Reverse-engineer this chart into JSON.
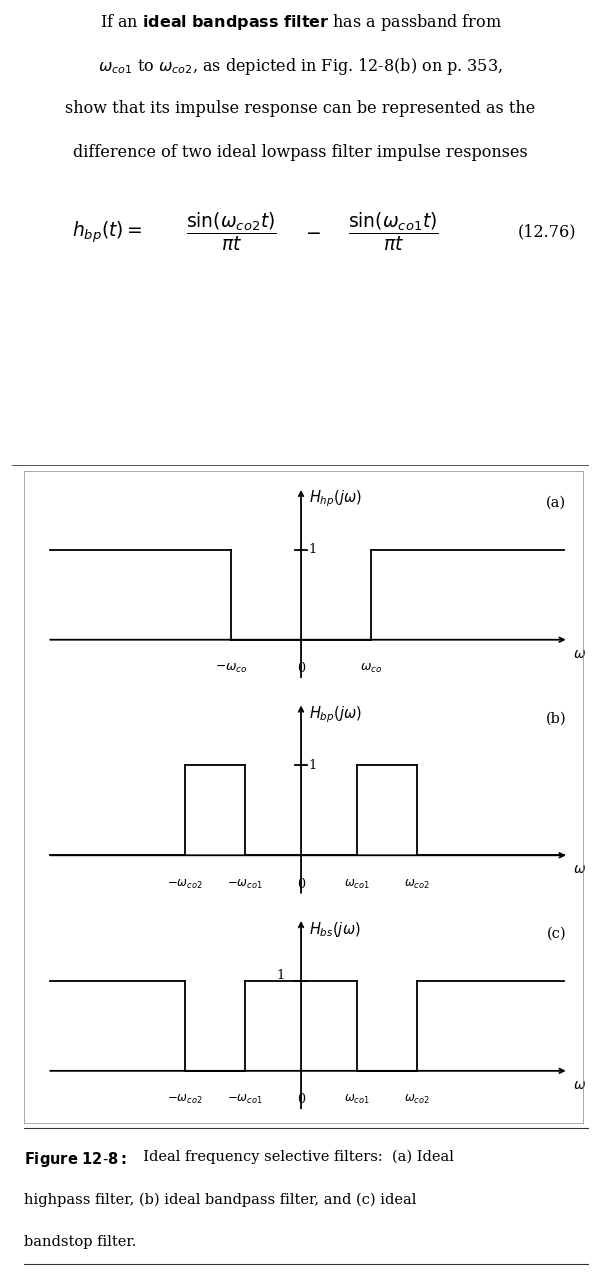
{
  "bg_color": "#ffffff",
  "text_color": "#000000",
  "lw": 1.3,
  "lc": "#000000",
  "wco": 1.5,
  "wco1": 1.2,
  "wco2": 2.5,
  "xlim": [
    -5.5,
    5.8
  ],
  "ylim_plots": [
    -0.55,
    1.85
  ],
  "subplot_labels": [
    "(a)",
    "(b)",
    "(c)"
  ],
  "subplot_titles": [
    "$H_{hp}(j\\omega)$",
    "$H_{bp}(j\\omega)$",
    "$H_{bs}(j\\omega)$"
  ],
  "caption_bold": "Figure 12-8:",
  "caption_rest": "  Ideal frequency selective filters:  (a) Ideal\nhighpass filter, (b) ideal bandpass filter, and (c) ideal\nbandstop filter."
}
